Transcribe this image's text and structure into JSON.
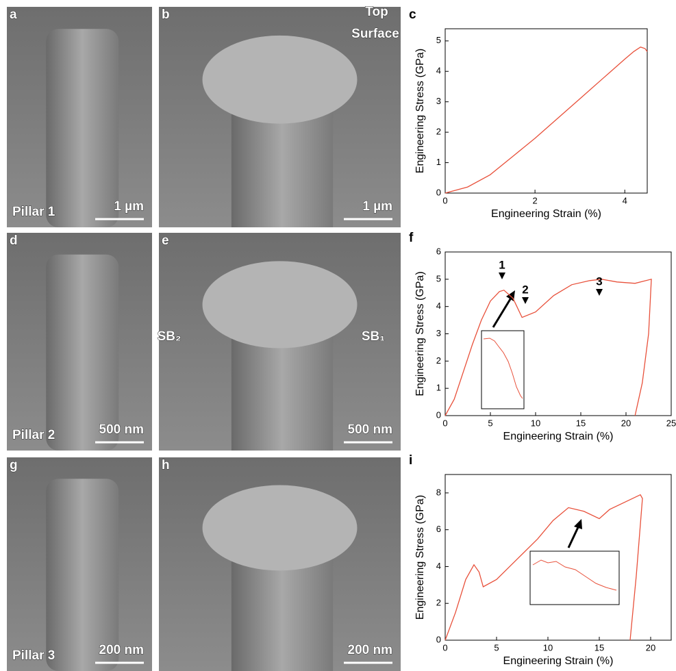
{
  "panels": [
    {
      "letter": "a",
      "label": "Pillar 1",
      "scale": "1 µm"
    },
    {
      "letter": "b",
      "scale": "1 µm",
      "annotations": [
        "Top",
        "Surface"
      ]
    },
    {
      "letter": "d",
      "label": "Pillar 2",
      "scale": "500 nm"
    },
    {
      "letter": "e",
      "scale": "500 nm",
      "annotations": [
        "SB₂",
        "SB₁"
      ]
    },
    {
      "letter": "g",
      "label": "Pillar 3",
      "scale": "200 nm"
    },
    {
      "letter": "h",
      "scale": "200 nm"
    }
  ],
  "chart_data": [
    {
      "type": "line",
      "letter": "c",
      "xlabel": "Engineering Strain (%)",
      "ylabel": "Engineering Stress (GPa)",
      "color": "#e8503a",
      "x": [
        0,
        0.5,
        1,
        1.5,
        2,
        2.5,
        3,
        3.5,
        4,
        4.2,
        4.35,
        4.45,
        4.5
      ],
      "values": [
        0,
        0.2,
        0.6,
        1.2,
        1.8,
        2.45,
        3.1,
        3.75,
        4.4,
        4.65,
        4.8,
        4.75,
        4.65
      ],
      "xlim": [
        0,
        4.5
      ],
      "ylim": [
        0,
        5.4
      ],
      "xticks": [
        0,
        2,
        4
      ],
      "yticks": [
        0,
        1,
        2,
        3,
        4,
        5
      ]
    },
    {
      "type": "line",
      "letter": "f",
      "xlabel": "Engineering Strain (%)",
      "ylabel": "Engineering Stress (GPa)",
      "color": "#e8503a",
      "x": [
        0,
        1,
        2,
        3,
        4,
        5,
        6,
        6.5,
        7.5,
        8.5,
        10,
        12,
        14,
        16,
        17.3,
        19,
        21,
        22.8,
        22.5,
        21.8,
        21
      ],
      "values": [
        0,
        0.6,
        1.6,
        2.6,
        3.5,
        4.2,
        4.55,
        4.6,
        4.3,
        3.6,
        3.8,
        4.4,
        4.8,
        4.95,
        5.0,
        4.9,
        4.85,
        5.0,
        3.0,
        1.2,
        0
      ],
      "xlim": [
        0,
        25
      ],
      "ylim": [
        0,
        6
      ],
      "xticks": [
        0,
        5,
        10,
        15,
        20,
        25
      ],
      "yticks": [
        0,
        1,
        2,
        3,
        4,
        5,
        6
      ],
      "annotations": [
        "1",
        "2",
        "3"
      ]
    },
    {
      "type": "line",
      "letter": "i",
      "xlabel": "Engineering Strain (%)",
      "ylabel": "Engineering Stress (GPa)",
      "color": "#e8503a",
      "x": [
        0,
        1,
        2,
        2.8,
        3.3,
        3.7,
        5,
        7,
        9,
        10.5,
        12,
        13.5,
        15,
        16,
        17.5,
        19,
        19.2,
        18.6,
        18
      ],
      "values": [
        0,
        1.5,
        3.3,
        4.1,
        3.7,
        2.9,
        3.3,
        4.4,
        5.5,
        6.5,
        7.2,
        7.0,
        6.6,
        7.1,
        7.5,
        7.9,
        7.7,
        3.5,
        0
      ],
      "xlim": [
        0,
        22
      ],
      "ylim": [
        0,
        9
      ],
      "xticks": [
        0,
        5,
        10,
        15,
        20
      ],
      "yticks": [
        0,
        2,
        4,
        6,
        8
      ]
    }
  ]
}
